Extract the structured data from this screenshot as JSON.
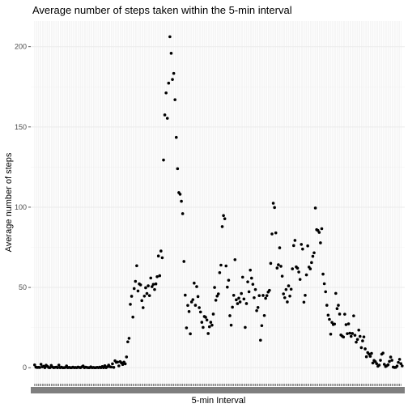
{
  "chart_data": {
    "type": "scatter",
    "title": "Average number of steps taken within the 5-min interval",
    "xlabel": "5-min Interval",
    "ylabel": "Average number of steps",
    "x_scale": "discrete",
    "x_categories_count": 288,
    "x_tick_labels_note": "",
    "ylim": [
      -10,
      216
    ],
    "yticks": [
      0,
      50,
      100,
      150,
      200
    ],
    "grid": true,
    "legend": "none",
    "point_color": "#000000",
    "background": "#ffffff",
    "grid_color": "#ebebeb",
    "values": [
      1.7,
      0.3,
      0.1,
      0.2,
      0.1,
      2.1,
      0.5,
      0.9,
      0,
      1.5,
      0.8,
      0.1,
      0,
      1.4,
      0.4,
      0,
      0.2,
      0.3,
      0,
      1.6,
      0,
      0.3,
      0,
      0,
      0.1,
      1.1,
      0,
      0.2,
      0,
      0,
      0.3,
      0,
      0.1,
      0,
      0.4,
      0.1,
      0,
      0.5,
      1.1,
      0,
      0.3,
      0.1,
      0,
      0,
      0.5,
      0,
      0.1,
      0,
      0,
      0.2,
      0,
      0.3,
      0,
      0.7,
      0,
      1.2,
      0,
      0.6,
      1.6,
      0.6,
      0.4,
      2.4,
      0.2,
      4.3,
      3.3,
      3.5,
      1.1,
      3.8,
      3.0,
      2.0,
      3.5,
      2.4,
      6.7,
      16.1,
      18.3,
      39.5,
      44.5,
      31.5,
      49.3,
      53.8,
      63.5,
      47.8,
      52.2,
      51.6,
      41.8,
      37.4,
      44.6,
      49.8,
      46.2,
      51.0,
      44.9,
      55.9,
      50.5,
      51.9,
      48.7,
      52.2,
      56.7,
      69.6,
      57.3,
      72.7,
      68.5,
      129.4,
      157.5,
      171.2,
      155.4,
      177.3,
      206.2,
      195.9,
      179.6,
      183.4,
      167.0,
      143.5,
      124.0,
      109.1,
      108.1,
      103.7,
      95.96,
      66.2,
      45.2,
      24.8,
      38.8,
      34.98,
      21.1,
      40.98,
      42.4,
      52.7,
      38.9,
      50.5,
      44.3,
      37.4,
      34.7,
      28.3,
      25.1,
      31.9,
      31.4,
      29.7,
      21.3,
      25.5,
      28.3,
      26.5,
      33.4,
      49.98,
      42.0,
      44.6,
      46.0,
      59.2,
      63.9,
      87.9,
      94.8,
      92.8,
      63.4,
      50.2,
      54.5,
      32.4,
      26.5,
      37.7,
      45.1,
      67.3,
      42.3,
      39.9,
      43.3,
      40.98,
      46.2,
      56.4,
      42.8,
      25.1,
      39.96,
      53.5,
      47.3,
      60.8,
      55.8,
      51.96,
      43.6,
      48.7,
      35.5,
      37.5,
      44.9,
      17.1,
      26.2,
      45.0,
      32.5,
      43.2,
      44.9,
      47.1,
      48.2,
      65.0,
      83.3,
      102.5,
      99.8,
      84.0,
      62.1,
      64.1,
      74.7,
      63.2,
      57.0,
      46.0,
      43.6,
      48.7,
      40.98,
      51.0,
      44.6,
      48.9,
      61.6,
      76.1,
      79.3,
      62.8,
      62.0,
      59.6,
      55.0,
      76.8,
      73.9,
      40.8,
      45.1,
      57.8,
      75.9,
      62.7,
      61.6,
      65.5,
      69.4,
      71.6,
      99.5,
      86.0,
      85.5,
      84.3,
      77.8,
      86.6,
      58.3,
      52.3,
      47.3,
      38.9,
      32.7,
      30.1,
      20.9,
      28.2,
      26.9,
      27.2,
      46.3,
      36.8,
      38.9,
      33.4,
      20.4,
      19.7,
      19.1,
      33.3,
      26.8,
      21.2,
      27.3,
      21.5,
      19.5,
      21.3,
      32.3,
      20.2,
      15.9,
      17.6,
      23.4,
      19.5,
      12.5,
      16.7,
      19.2,
      11.7,
      6.8,
      9.4,
      8.5,
      7.1,
      8.9,
      2.9,
      4.5,
      3.7,
      2.5,
      0.9,
      1.6,
      4.6,
      8.4,
      9.1,
      2.1,
      0.7,
      1.2,
      1.8,
      3.9,
      6.6,
      4.6,
      0.4,
      0.1,
      0.2,
      1.0,
      3.3,
      5.2,
      2.5,
      1.1
    ]
  }
}
